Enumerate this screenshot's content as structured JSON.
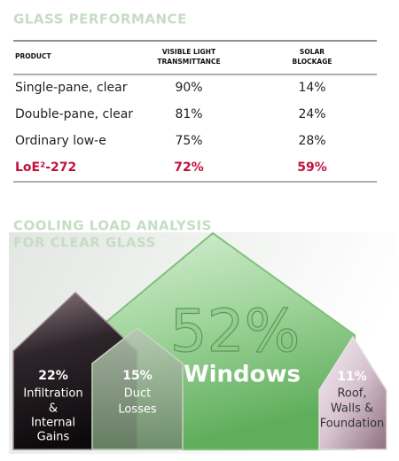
{
  "performance": {
    "title": "GLASS PERFORMANCE",
    "headers": [
      [
        "PRODUCT"
      ],
      [
        "VISIBLE LIGHT",
        "TRANSMITTANCE"
      ],
      [
        "SOLAR",
        "BLOCKAGE"
      ]
    ],
    "rows": [
      [
        "Single-pane, clear",
        "90%",
        "14%"
      ],
      [
        "Double-pane, clear",
        "81%",
        "24%"
      ],
      [
        "Ordinary low-e",
        "75%",
        "28%"
      ],
      [
        "LoE²-272",
        "72%",
        "59%"
      ]
    ]
  },
  "cooling": {
    "title": [
      "COOLING LOAD ANALYSIS",
      "FOR CLEAR GLASS"
    ],
    "items": [
      {
        "value": "22%",
        "label": [
          "Infiltration",
          "&",
          "Internal",
          "Gains"
        ]
      },
      {
        "value": "15%",
        "label": [
          "Duct",
          "Losses"
        ]
      },
      {
        "value": "52%",
        "label": [
          "Windows"
        ]
      },
      {
        "value": "11%",
        "label": [
          "Roof,",
          "Walls &",
          "Foundation"
        ]
      }
    ]
  }
}
